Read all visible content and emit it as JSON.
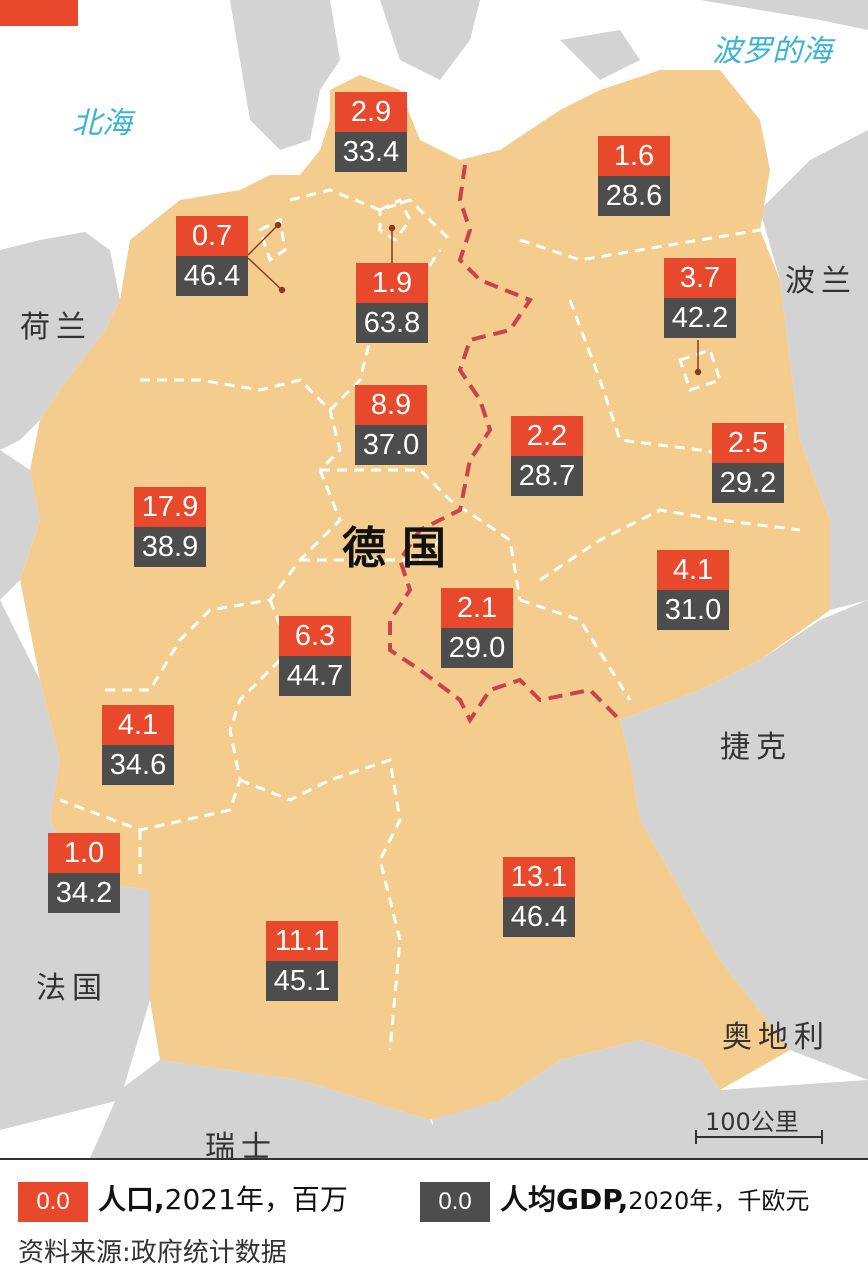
{
  "colors": {
    "sea": "#ffffff",
    "land": "#d3d3d3",
    "germany": "#f3cc8e",
    "population_box": "#e8482c",
    "gdp_box": "#4d4d4d",
    "border_line": "#c9444a",
    "sea_label": "#3ab4d1"
  },
  "seas": {
    "north_sea": "北海",
    "baltic_sea": "波罗的海"
  },
  "countries": {
    "netherlands": "荷兰",
    "poland": "波兰",
    "czech": "捷克",
    "austria": "奥地利",
    "switzerland": "瑞士",
    "france": "法国",
    "germany": "德国"
  },
  "states": [
    {
      "id": "schleswig-holstein",
      "population": "2.9",
      "gdp": "33.4"
    },
    {
      "id": "mecklenburg-vorpommern",
      "population": "1.6",
      "gdp": "28.6"
    },
    {
      "id": "bremen",
      "population": "0.7",
      "gdp": "46.4"
    },
    {
      "id": "hamburg",
      "population": "1.9",
      "gdp": "63.8"
    },
    {
      "id": "berlin",
      "population": "3.7",
      "gdp": "42.2"
    },
    {
      "id": "lower-saxony",
      "population": "8.9",
      "gdp": "37.0"
    },
    {
      "id": "saxony-anhalt",
      "population": "2.2",
      "gdp": "28.7"
    },
    {
      "id": "brandenburg",
      "population": "2.5",
      "gdp": "29.2"
    },
    {
      "id": "north-rhine-westphalia",
      "population": "17.9",
      "gdp": "38.9"
    },
    {
      "id": "saxony",
      "population": "4.1",
      "gdp": "31.0"
    },
    {
      "id": "thuringia",
      "population": "2.1",
      "gdp": "29.0"
    },
    {
      "id": "hesse",
      "population": "6.3",
      "gdp": "44.7"
    },
    {
      "id": "rhineland-palatinate",
      "population": "4.1",
      "gdp": "34.6"
    },
    {
      "id": "saarland",
      "population": "1.0",
      "gdp": "34.2"
    },
    {
      "id": "bavaria",
      "population": "13.1",
      "gdp": "46.4"
    },
    {
      "id": "baden-wurttemberg",
      "population": "11.1",
      "gdp": "45.1"
    }
  ],
  "scale_bar": "100公里",
  "legend": {
    "swatch_value": "0.0",
    "population_title": "人口,",
    "population_detail": "2021年，百万",
    "gdp_title": "人均GDP,",
    "gdp_detail": "2020年，千欧元",
    "source": "资料来源:政府统计数据"
  }
}
